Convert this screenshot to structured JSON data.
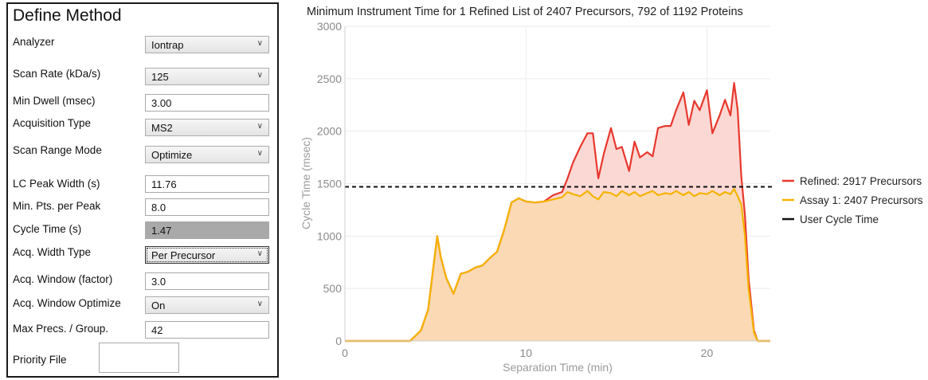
{
  "panel": {
    "title": "Define Method",
    "fields": [
      {
        "label": "Analyzer",
        "value": "Iontrap",
        "kind": "select"
      },
      {
        "label": "Scan Rate (kDa/s)",
        "value": "125",
        "kind": "select"
      },
      {
        "label": "Min Dwell (msec)",
        "value": "3.00",
        "kind": "input"
      },
      {
        "label": "Acquisition Type",
        "value": "MS2",
        "kind": "select"
      },
      {
        "label": "Scan Range Mode",
        "value": "Optimize",
        "kind": "select"
      },
      {
        "label": "LC Peak Width (s)",
        "value": "11.76",
        "kind": "input"
      },
      {
        "label": "Min. Pts. per Peak",
        "value": "8.0",
        "kind": "input"
      },
      {
        "label": "Cycle Time (s)",
        "value": "1.47",
        "kind": "readonly"
      },
      {
        "label": "Acq. Width Type",
        "value": "Per Precursor",
        "kind": "select"
      },
      {
        "label": "Acq. Window (factor)",
        "value": "3.0",
        "kind": "input"
      },
      {
        "label": "Acq. Window Optimize",
        "value": "On",
        "kind": "select"
      },
      {
        "label": "Max Precs. / Group.",
        "value": "42",
        "kind": "input"
      }
    ],
    "priority_label": "Priority File",
    "priority_value": ""
  },
  "chart_data": {
    "type": "area",
    "title": "Minimum Instrument Time for 1 Refined List of 2407 Precursors, 792 of 1192 Proteins",
    "xlabel": "Separation Time (min)",
    "ylabel": "Cycle Time (msec)",
    "xlim": [
      0,
      23.5
    ],
    "ylim": [
      0,
      3000
    ],
    "xticks": [
      0,
      10,
      20
    ],
    "yticks": [
      0,
      500,
      1000,
      1500,
      2000,
      2500,
      3000
    ],
    "grid": true,
    "legend_position": "right",
    "user_cycle_time": 1470,
    "series": [
      {
        "name": "Refined: 2917 Precursors",
        "color": "#e8382e",
        "fill": "#fcd8d4",
        "x": [
          0,
          3.2,
          3.6,
          4.2,
          4.6,
          4.9,
          5.1,
          5.3,
          5.6,
          6.0,
          6.4,
          6.8,
          7.2,
          7.6,
          8.0,
          8.4,
          8.8,
          9.2,
          9.6,
          10.0,
          10.5,
          11.0,
          11.5,
          12.0,
          12.3,
          12.6,
          13.0,
          13.4,
          13.7,
          14.0,
          14.3,
          14.7,
          15.0,
          15.3,
          15.7,
          16.0,
          16.3,
          16.7,
          17.0,
          17.3,
          17.7,
          18.0,
          18.3,
          18.7,
          19.0,
          19.3,
          19.6,
          20.0,
          20.3,
          20.7,
          21.0,
          21.3,
          21.5,
          21.7,
          21.9,
          22.1,
          22.3,
          22.6,
          22.8,
          23.5
        ],
        "values": [
          0,
          0,
          0,
          100,
          300,
          720,
          1000,
          800,
          600,
          450,
          640,
          660,
          700,
          720,
          790,
          850,
          1060,
          1320,
          1360,
          1330,
          1320,
          1330,
          1390,
          1420,
          1550,
          1700,
          1850,
          1980,
          1980,
          1550,
          1780,
          2030,
          1830,
          1850,
          1620,
          1900,
          1750,
          1800,
          1760,
          2030,
          2050,
          2050,
          2200,
          2370,
          2060,
          2290,
          2200,
          2390,
          1980,
          2150,
          2300,
          2150,
          2460,
          2200,
          1570,
          1200,
          600,
          100,
          0,
          0
        ]
      },
      {
        "name": "Assay 1: 2407 Precursors",
        "color": "#f5b400",
        "fill": "#fad9b4",
        "x": [
          0,
          3.2,
          3.6,
          4.2,
          4.6,
          4.9,
          5.1,
          5.3,
          5.6,
          6.0,
          6.4,
          6.8,
          7.2,
          7.6,
          8.0,
          8.4,
          8.8,
          9.2,
          9.6,
          10.0,
          10.5,
          11.0,
          11.5,
          12.0,
          12.3,
          12.6,
          13.0,
          13.4,
          13.7,
          14.0,
          14.3,
          14.7,
          15.0,
          15.3,
          15.7,
          16.0,
          16.3,
          16.7,
          17.0,
          17.3,
          17.7,
          18.0,
          18.3,
          18.7,
          19.0,
          19.3,
          19.6,
          20.0,
          20.3,
          20.7,
          21.0,
          21.3,
          21.5,
          21.7,
          21.9,
          22.1,
          22.3,
          22.6,
          22.8,
          23.5
        ],
        "values": [
          0,
          0,
          0,
          100,
          300,
          720,
          1000,
          800,
          600,
          450,
          640,
          660,
          700,
          720,
          790,
          850,
          1060,
          1320,
          1360,
          1330,
          1320,
          1330,
          1350,
          1370,
          1420,
          1400,
          1380,
          1430,
          1380,
          1350,
          1420,
          1410,
          1380,
          1430,
          1390,
          1420,
          1380,
          1410,
          1430,
          1390,
          1410,
          1400,
          1430,
          1390,
          1420,
          1380,
          1410,
          1400,
          1430,
          1390,
          1420,
          1400,
          1450,
          1380,
          1300,
          1000,
          500,
          80,
          0,
          0
        ]
      }
    ],
    "legend_extra": "User Cycle Time"
  }
}
